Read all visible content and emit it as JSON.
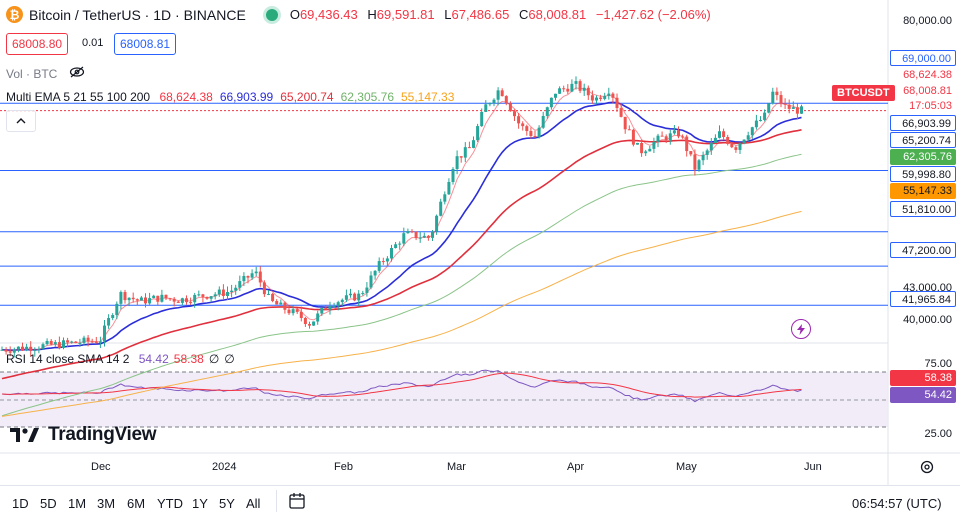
{
  "header": {
    "logo_glyph": "₿",
    "title": "Bitcoin / TetherUS · 1D · BINANCE",
    "ohlc": [
      {
        "label": "O",
        "value": "69,436.43"
      },
      {
        "label": "H",
        "value": "69,591.81"
      },
      {
        "label": "L",
        "value": "67,486.65"
      },
      {
        "label": "C",
        "value": "68,008.81"
      }
    ],
    "change": "−1,427.62 (−2.06%)",
    "sell_price": "68008.80",
    "spread": "0.01",
    "buy_price": "68008.81",
    "volume_label": "Vol · BTC",
    "eye_icon": "eye-crossed-icon",
    "live_status_color": "#2bab7c"
  },
  "indicators": {
    "ema_label": "Multi EMA 5 21 55 100 200",
    "ema_values": [
      {
        "value": "68,624.38",
        "color": "#f23645"
      },
      {
        "value": "66,903.99",
        "color": "#2b2ed8"
      },
      {
        "value": "65,200.74",
        "color": "#e0303d"
      },
      {
        "value": "62,305.76",
        "color": "#6fb26a"
      },
      {
        "value": "55,147.33",
        "color": "#f7a21b"
      }
    ],
    "rsi_label": "RSI 14 close SMA 14 2",
    "rsi_values": [
      {
        "value": "54.42",
        "color": "#7e57c2"
      },
      {
        "value": "58.38",
        "color": "#f23645"
      },
      {
        "value": "∅",
        "color": "#131722"
      },
      {
        "value": "∅",
        "color": "#131722"
      }
    ]
  },
  "price_axis": {
    "ticks": [
      "80,000.00",
      "43,000.00",
      "40,000.00"
    ],
    "badges": [
      {
        "text": "69,000.00",
        "bg": "#ffffff",
        "fg": "#2962ff",
        "border": "#2962ff"
      },
      {
        "text": "68,624.38",
        "bg": "#ffffff",
        "fg": "#f23645",
        "border": "#ffffff"
      },
      {
        "text": "68,008.81",
        "bg": "#ffffff",
        "fg": "#f23645",
        "border": "#ffffff"
      },
      {
        "text": "17:05:03",
        "bg": "#ffffff",
        "fg": "#f23645",
        "border": "#ffffff"
      },
      {
        "text": "66,903.99",
        "bg": "#ffffff",
        "fg": "#131722",
        "border": "#2962ff"
      },
      {
        "text": "65,200.74",
        "bg": "#ffffff",
        "fg": "#131722",
        "border": "#2962ff"
      },
      {
        "text": "62,305.76",
        "bg": "#4caf50",
        "fg": "#ffffff",
        "border": "#4caf50"
      },
      {
        "text": "59,998.80",
        "bg": "#ffffff",
        "fg": "#131722",
        "border": "#2962ff"
      },
      {
        "text": "55,147.33",
        "bg": "#ff9800",
        "fg": "#131722",
        "border": "#ff9800"
      },
      {
        "text": "51,810.00",
        "bg": "#ffffff",
        "fg": "#131722",
        "border": "#2962ff"
      },
      {
        "text": "47,200.00",
        "bg": "#ffffff",
        "fg": "#131722",
        "border": "#2962ff"
      },
      {
        "text": "41,965.84",
        "bg": "#ffffff",
        "fg": "#131722",
        "border": "#2962ff"
      }
    ],
    "symbol_tag": "BTCUSDT"
  },
  "rsi_axis": {
    "ticks": [
      "75.00",
      "25.00"
    ],
    "badges": [
      {
        "text": "58.38",
        "bg": "#f23645",
        "fg": "#ffffff"
      },
      {
        "text": "54.42",
        "bg": "#7e57c2",
        "fg": "#ffffff"
      }
    ]
  },
  "time_axis": [
    "Dec",
    "2024",
    "Feb",
    "Mar",
    "Apr",
    "May",
    "Jun"
  ],
  "range_buttons": [
    "1D",
    "5D",
    "1M",
    "3M",
    "6M",
    "YTD",
    "1Y",
    "5Y",
    "All"
  ],
  "clock": "06:54:57 (UTC)",
  "brand": "TradingView",
  "colors": {
    "up": "#26a69a",
    "down": "#ef5350",
    "level_line": "#2962ff"
  },
  "chart_data": {
    "type": "candlestick",
    "price_levels": [
      69000,
      59998.8,
      51810,
      47200,
      41965.84
    ],
    "ema_series": [
      "EMA 5",
      "EMA 21",
      "EMA 55",
      "EMA 100",
      "EMA 200"
    ],
    "last_close": 68008.81,
    "rsi_last": 54.42,
    "rsi_sma_last": 58.38
  }
}
